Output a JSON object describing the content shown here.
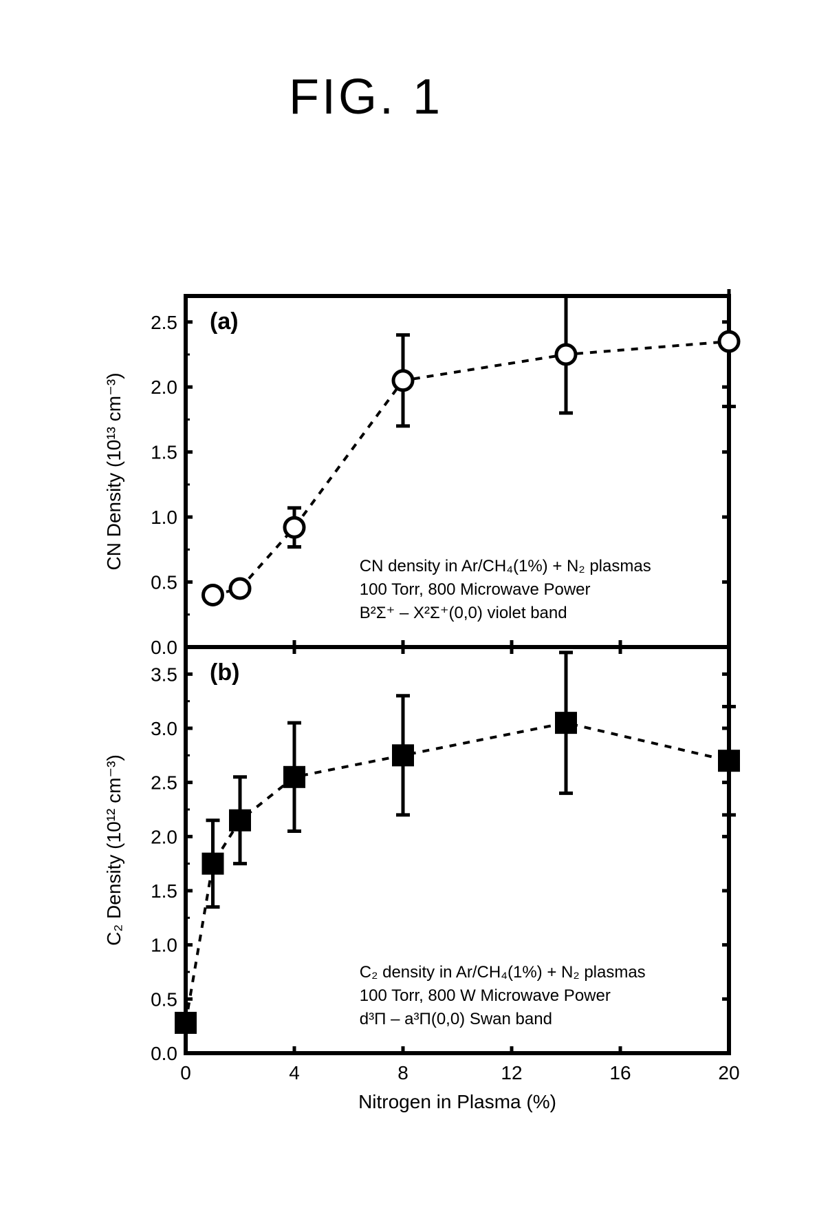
{
  "figure_title": "FIG. 1",
  "panelA": {
    "type": "scatter",
    "panel_label": "(a)",
    "ylabel": "CN Density (10¹³ cm⁻³)",
    "ylim": [
      0.0,
      2.7
    ],
    "yticks": [
      0.0,
      0.5,
      1.0,
      1.5,
      2.0,
      2.5
    ],
    "xlim": [
      0,
      20
    ],
    "points": [
      {
        "x": 1,
        "y": 0.4,
        "err": 0.0
      },
      {
        "x": 2,
        "y": 0.45,
        "err": 0.0
      },
      {
        "x": 4,
        "y": 0.92,
        "err": 0.15
      },
      {
        "x": 8,
        "y": 2.05,
        "err": 0.35
      },
      {
        "x": 14,
        "y": 2.25,
        "err": 0.45
      },
      {
        "x": 20,
        "y": 2.35,
        "err": 0.5
      }
    ],
    "marker": "open-circle",
    "marker_size": 14,
    "marker_stroke": 5,
    "linestyle": "dashed",
    "line_width": 4,
    "color": "#000000",
    "legend_lines": [
      "CN density in Ar/CH₄(1%) + N₂ plasmas",
      "100 Torr, 800 Microwave Power",
      "B²Σ⁺ – X²Σ⁺(0,0) violet band"
    ]
  },
  "panelB": {
    "type": "scatter",
    "panel_label": "(b)",
    "ylabel": "C₂ Density (10¹² cm⁻³)",
    "xlabel": "Nitrogen in Plasma (%)",
    "ylim": [
      0.0,
      3.75
    ],
    "yticks": [
      0.0,
      0.5,
      1.0,
      1.5,
      2.0,
      2.5,
      3.0,
      3.5
    ],
    "xlim": [
      0,
      20
    ],
    "xticks": [
      0,
      4,
      8,
      12,
      16,
      20
    ],
    "points": [
      {
        "x": 0,
        "y": 0.28,
        "err": 0.0
      },
      {
        "x": 1,
        "y": 1.75,
        "err": 0.4
      },
      {
        "x": 2,
        "y": 2.15,
        "err": 0.4
      },
      {
        "x": 4,
        "y": 2.55,
        "err": 0.5
      },
      {
        "x": 8,
        "y": 2.75,
        "err": 0.55
      },
      {
        "x": 14,
        "y": 3.05,
        "err": 0.65
      },
      {
        "x": 20,
        "y": 2.7,
        "err": 0.5
      }
    ],
    "marker": "filled-square",
    "marker_size": 16,
    "marker_stroke": 5,
    "linestyle": "dashed",
    "line_width": 4,
    "color": "#000000",
    "legend_lines": [
      "C₂ density in Ar/CH₄(1%) + N₂ plasmas",
      "100 Torr, 800 W Microwave Power",
      "d³Π – a³Π(0,0) Swan band"
    ]
  },
  "style": {
    "background_color": "#ffffff",
    "axis_color": "#000000",
    "axis_width": 6,
    "tick_length": 10,
    "tick_width": 5,
    "label_fontsize": 32,
    "tick_fontsize": 28,
    "panel_label_fontsize": 34,
    "legend_fontsize": 24,
    "title_fontsize": 72
  }
}
